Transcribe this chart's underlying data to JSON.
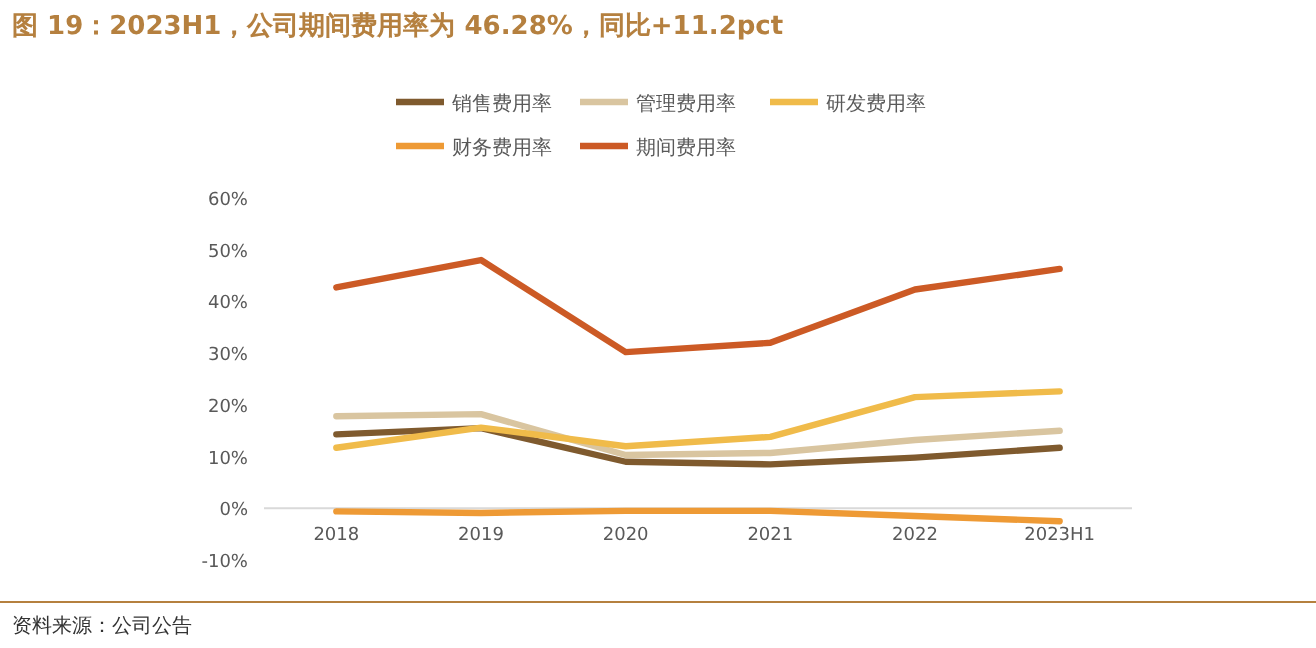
{
  "chart_data": {
    "type": "line",
    "title": "图 19：2023H1，公司期间费用率为 46.28%，同比+11.2pct",
    "categories": [
      "2018",
      "2019",
      "2020",
      "2021",
      "2022",
      "2023H1"
    ],
    "series": [
      {
        "name": "销售费用率",
        "color": "#7f5a2e",
        "values": [
          14.3,
          15.5,
          9.0,
          8.5,
          9.8,
          11.7
        ]
      },
      {
        "name": "管理费用率",
        "color": "#d9c5a0",
        "values": [
          17.8,
          18.2,
          10.3,
          10.7,
          13.2,
          15.0
        ]
      },
      {
        "name": "研发费用率",
        "color": "#f0bb4a",
        "values": [
          11.7,
          15.6,
          12.0,
          13.8,
          21.5,
          22.6
        ]
      },
      {
        "name": "财务费用率",
        "color": "#ee9a35",
        "values": [
          -0.6,
          -0.9,
          -0.5,
          -0.5,
          -1.5,
          -2.5
        ]
      },
      {
        "name": "期间费用率",
        "color": "#cc5a25",
        "values": [
          42.7,
          48.0,
          30.2,
          32.0,
          42.3,
          46.28
        ]
      }
    ],
    "ylim": [
      -10,
      60
    ],
    "yticks": [
      {
        "value": -10,
        "label": "-10%"
      },
      {
        "value": 0,
        "label": "0%"
      },
      {
        "value": 10,
        "label": "10%"
      },
      {
        "value": 20,
        "label": "20%"
      },
      {
        "value": 30,
        "label": "30%"
      },
      {
        "value": 40,
        "label": "40%"
      },
      {
        "value": 50,
        "label": "50%"
      },
      {
        "value": 60,
        "label": "60%"
      }
    ],
    "legend": "top",
    "annotations": [
      "资料来源：公司公告"
    ]
  }
}
